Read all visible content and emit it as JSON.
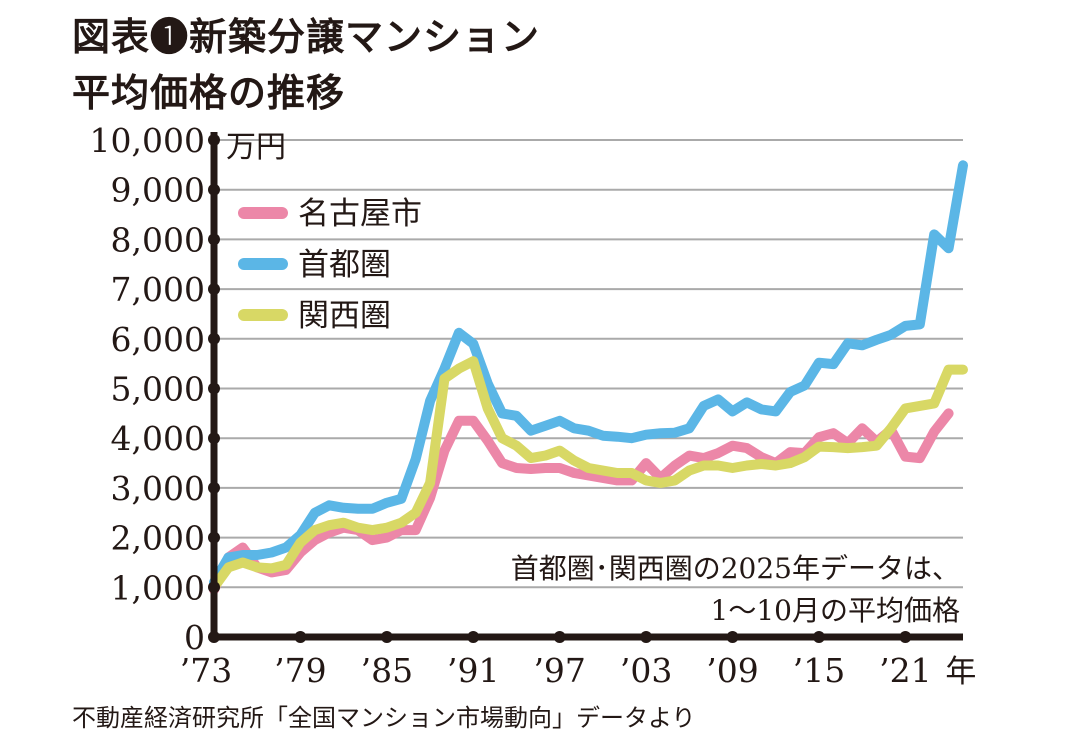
{
  "title_line1": "図表❶新築分譲マンション",
  "title_line2": "平均価格の推移",
  "source": "不動産経済研究所「全国マンション市場動向」データより",
  "chart_data": {
    "type": "line",
    "ylabel": "万円",
    "xlabel_unit": "年",
    "ylim": [
      0,
      10000
    ],
    "xlim": [
      1973,
      2025
    ],
    "grid": true,
    "legend_position": "top-left",
    "y_ticks": [
      "0",
      "1,000",
      "2,000",
      "3,000",
      "4,000",
      "5,000",
      "6,000",
      "7,000",
      "8,000",
      "9,000",
      "10,000"
    ],
    "x_ticks": [
      "’73",
      "’79",
      "’85",
      "’91",
      "’97",
      "’03",
      "’09",
      "’15",
      "’21"
    ],
    "x_tick_years": [
      1973,
      1979,
      1985,
      1991,
      1997,
      2003,
      2009,
      2015,
      2021
    ],
    "annotation_line1": "首都圏･関西圏の2025年データは、",
    "annotation_line2": "1～10月の平均価格",
    "series": [
      {
        "name": "名古屋市",
        "color": "#ec87a8",
        "start_year": 1973,
        "values": [
          950,
          1600,
          1800,
          1400,
          1300,
          1350,
          1700,
          1950,
          2100,
          2200,
          2150,
          1950,
          2000,
          2150,
          2150,
          2800,
          3750,
          4350,
          4350,
          3950,
          3500,
          3400,
          3380,
          3400,
          3400,
          3300,
          3250,
          3200,
          3150,
          3150,
          3500,
          3200,
          3450,
          3650,
          3600,
          3700,
          3850,
          3800,
          3620,
          3500,
          3720,
          3700,
          4020,
          4100,
          3900,
          4200,
          3930,
          4170,
          3630,
          3600,
          4130,
          4500
        ]
      },
      {
        "name": "首都圏",
        "color": "#5bb6e6",
        "start_year": 1973,
        "values": [
          1100,
          1600,
          1650,
          1650,
          1700,
          1800,
          2050,
          2500,
          2650,
          2600,
          2580,
          2580,
          2700,
          2780,
          3580,
          4750,
          5400,
          6120,
          5900,
          5100,
          4500,
          4450,
          4150,
          4250,
          4350,
          4200,
          4150,
          4050,
          4030,
          4000,
          4070,
          4100,
          4110,
          4200,
          4650,
          4780,
          4540,
          4720,
          4580,
          4540,
          4930,
          5060,
          5520,
          5490,
          5910,
          5870,
          5980,
          6080,
          6260,
          6290,
          8100,
          7820,
          9490
        ]
      },
      {
        "name": "関西圏",
        "color": "#d8d865",
        "start_year": 1973,
        "values": [
          1000,
          1400,
          1500,
          1400,
          1380,
          1450,
          1900,
          2150,
          2250,
          2300,
          2200,
          2150,
          2200,
          2300,
          2500,
          3100,
          5200,
          5400,
          5550,
          4600,
          4000,
          3850,
          3600,
          3650,
          3750,
          3550,
          3400,
          3350,
          3300,
          3300,
          3150,
          3100,
          3150,
          3350,
          3450,
          3450,
          3400,
          3450,
          3480,
          3450,
          3500,
          3620,
          3830,
          3820,
          3800,
          3820,
          3850,
          4200,
          4600,
          4650,
          4700,
          5380,
          5380
        ]
      }
    ]
  }
}
